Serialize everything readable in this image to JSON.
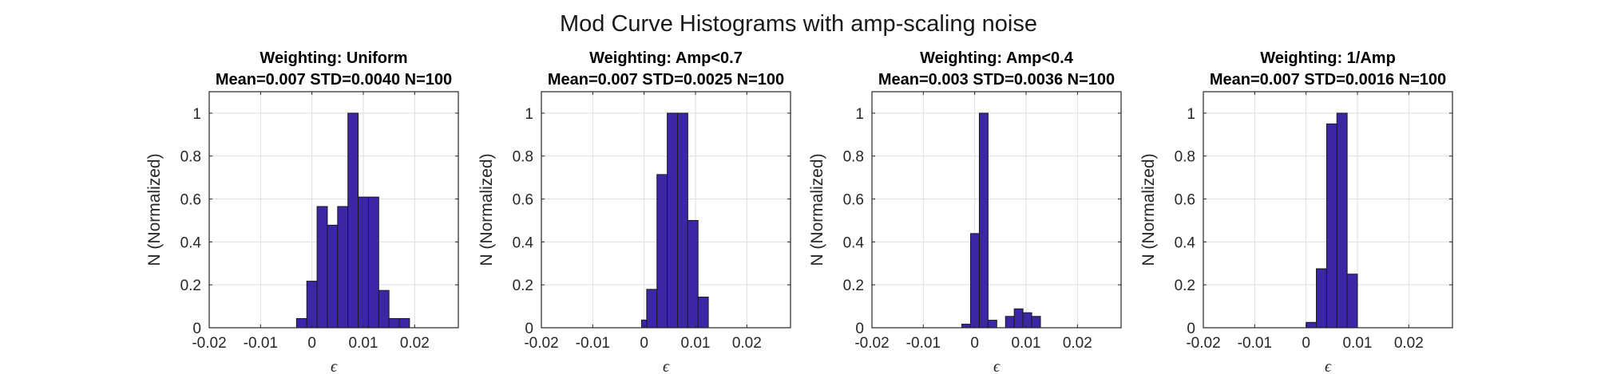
{
  "figure": {
    "title": "Mod Curve Histograms with amp-scaling noise"
  },
  "colors": {
    "bar_fill": "#3c26a6",
    "bar_edge": "#1a1a1a",
    "grid": "#dedede"
  },
  "chart_data": [
    {
      "type": "bar",
      "title_line1": "Weighting: Uniform",
      "title_line2": "Mean=0.007 STD=0.0040 N=100",
      "xlabel": "ϵ",
      "ylabel": "N (Normalized)",
      "xlim": [
        -0.02,
        0.0285
      ],
      "ylim": [
        0,
        1.1
      ],
      "xticks": [
        -0.02,
        -0.01,
        0,
        0.01,
        0.02
      ],
      "xtick_labels": [
        "-0.02",
        "-0.01",
        "0",
        "0.01",
        "0.02"
      ],
      "yticks": [
        0,
        0.2,
        0.4,
        0.6,
        0.8,
        1
      ],
      "ytick_labels": [
        "0",
        "0.2",
        "0.4",
        "0.6",
        "0.8",
        "1"
      ],
      "grid": true,
      "bins": [
        {
          "x0": -0.003,
          "x1": -0.001,
          "value": 0.043
        },
        {
          "x0": -0.001,
          "x1": 0.001,
          "value": 0.217
        },
        {
          "x0": 0.001,
          "x1": 0.003,
          "value": 0.565
        },
        {
          "x0": 0.003,
          "x1": 0.005,
          "value": 0.478
        },
        {
          "x0": 0.005,
          "x1": 0.007,
          "value": 0.565
        },
        {
          "x0": 0.007,
          "x1": 0.009,
          "value": 1.0
        },
        {
          "x0": 0.009,
          "x1": 0.011,
          "value": 0.609
        },
        {
          "x0": 0.011,
          "x1": 0.013,
          "value": 0.609
        },
        {
          "x0": 0.013,
          "x1": 0.015,
          "value": 0.174
        },
        {
          "x0": 0.015,
          "x1": 0.017,
          "value": 0.043
        },
        {
          "x0": 0.017,
          "x1": 0.019,
          "value": 0.043
        }
      ]
    },
    {
      "type": "bar",
      "title_line1": "Weighting: Amp<0.7",
      "title_line2": "Mean=0.007 STD=0.0025 N=100",
      "xlabel": "ϵ",
      "ylabel": "N (Normalized)",
      "xlim": [
        -0.02,
        0.0285
      ],
      "ylim": [
        0,
        1.1
      ],
      "xticks": [
        -0.02,
        -0.01,
        0,
        0.01,
        0.02
      ],
      "xtick_labels": [
        "-0.02",
        "-0.01",
        "0",
        "0.01",
        "0.02"
      ],
      "yticks": [
        0,
        0.2,
        0.4,
        0.6,
        0.8,
        1
      ],
      "ytick_labels": [
        "0",
        "0.2",
        "0.4",
        "0.6",
        "0.8",
        "1"
      ],
      "grid": true,
      "bins": [
        {
          "x0": -0.0005,
          "x1": 0.0005,
          "value": 0.036
        },
        {
          "x0": 0.0005,
          "x1": 0.0025,
          "value": 0.179
        },
        {
          "x0": 0.0025,
          "x1": 0.0045,
          "value": 0.714
        },
        {
          "x0": 0.0045,
          "x1": 0.0065,
          "value": 1.0
        },
        {
          "x0": 0.0065,
          "x1": 0.0085,
          "value": 1.0
        },
        {
          "x0": 0.0085,
          "x1": 0.0105,
          "value": 0.5
        },
        {
          "x0": 0.0105,
          "x1": 0.0125,
          "value": 0.143
        }
      ]
    },
    {
      "type": "bar",
      "title_line1": "Weighting: Amp<0.4",
      "title_line2": "Mean=0.003 STD=0.0036 N=100",
      "xlabel": "ϵ",
      "ylabel": "N (Normalized)",
      "xlim": [
        -0.02,
        0.0285
      ],
      "ylim": [
        0,
        1.1
      ],
      "xticks": [
        -0.02,
        -0.01,
        0,
        0.01,
        0.02
      ],
      "xtick_labels": [
        "-0.02",
        "-0.01",
        "0",
        "0.01",
        "0.02"
      ],
      "yticks": [
        0,
        0.2,
        0.4,
        0.6,
        0.8,
        1
      ],
      "ytick_labels": [
        "0",
        "0.2",
        "0.4",
        "0.6",
        "0.8",
        "1"
      ],
      "grid": true,
      "bins": [
        {
          "x0": -0.0025,
          "x1": -0.0008,
          "value": 0.017
        },
        {
          "x0": -0.0008,
          "x1": 0.0009,
          "value": 0.439
        },
        {
          "x0": 0.0009,
          "x1": 0.0026,
          "value": 1.0
        },
        {
          "x0": 0.0026,
          "x1": 0.0043,
          "value": 0.035
        },
        {
          "x0": 0.0043,
          "x1": 0.006,
          "value": 0.0
        },
        {
          "x0": 0.006,
          "x1": 0.0077,
          "value": 0.053
        },
        {
          "x0": 0.0077,
          "x1": 0.0094,
          "value": 0.088
        },
        {
          "x0": 0.0094,
          "x1": 0.0111,
          "value": 0.07
        },
        {
          "x0": 0.0111,
          "x1": 0.0128,
          "value": 0.053
        }
      ]
    },
    {
      "type": "bar",
      "title_line1": "Weighting: 1/Amp",
      "title_line2": "Mean=0.007 STD=0.0016 N=100",
      "xlabel": "ϵ",
      "ylabel": "N (Normalized)",
      "xlim": [
        -0.02,
        0.0285
      ],
      "ylim": [
        0,
        1.1
      ],
      "xticks": [
        -0.02,
        -0.01,
        0,
        0.01,
        0.02
      ],
      "xtick_labels": [
        "-0.02",
        "-0.01",
        "0",
        "0.01",
        "0.02"
      ],
      "yticks": [
        0,
        0.2,
        0.4,
        0.6,
        0.8,
        1
      ],
      "ytick_labels": [
        "0",
        "0.2",
        "0.4",
        "0.6",
        "0.8",
        "1"
      ],
      "grid": true,
      "bins": [
        {
          "x0": 0.0,
          "x1": 0.002,
          "value": 0.025
        },
        {
          "x0": 0.002,
          "x1": 0.004,
          "value": 0.275
        },
        {
          "x0": 0.004,
          "x1": 0.006,
          "value": 0.95
        },
        {
          "x0": 0.006,
          "x1": 0.008,
          "value": 1.0
        },
        {
          "x0": 0.008,
          "x1": 0.01,
          "value": 0.25
        }
      ]
    }
  ]
}
